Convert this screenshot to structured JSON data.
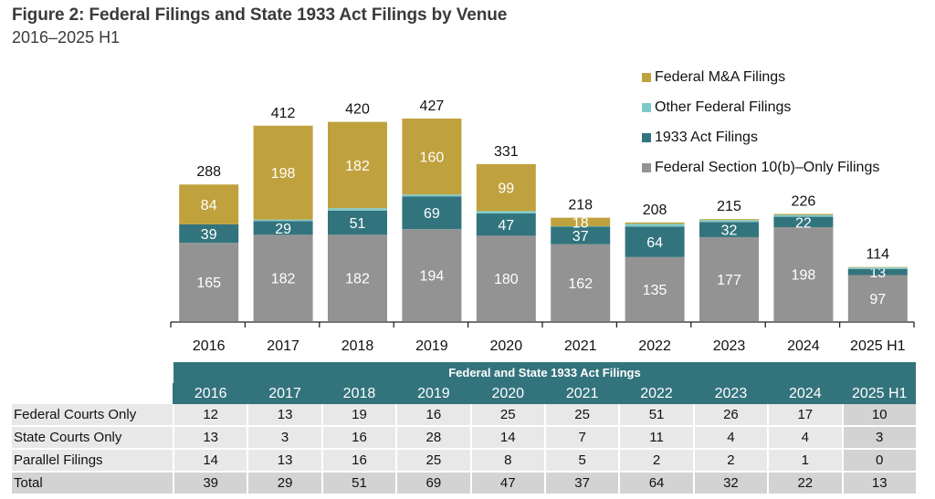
{
  "header": {
    "title": "Figure 2: Federal Filings and State 1933 Act Filings by Venue",
    "subtitle": "2016–2025 H1"
  },
  "chart_data": {
    "type": "bar",
    "stacked": true,
    "title": "Figure 2: Federal Filings and State 1933 Act Filings by Venue",
    "subtitle": "2016–2025 H1",
    "xlabel": "",
    "ylabel": "",
    "ylim": [
      0,
      430
    ],
    "grid": false,
    "legend_position": "top-right",
    "categories": [
      "2016",
      "2017",
      "2018",
      "2019",
      "2020",
      "2021",
      "2022",
      "2023",
      "2024",
      "2025 H1"
    ],
    "series": [
      {
        "name": "Federal Section 10(b)–Only Filings",
        "color": "#939393",
        "values": [
          165,
          182,
          182,
          194,
          180,
          162,
          135,
          177,
          198,
          97
        ],
        "labels": [
          "165",
          "182",
          "182",
          "194",
          "180",
          "162",
          "135",
          "177",
          "198",
          "97"
        ]
      },
      {
        "name": "1933 Act Filings",
        "color": "#32747d",
        "values": [
          39,
          29,
          51,
          69,
          47,
          37,
          64,
          32,
          22,
          13
        ],
        "labels": [
          "39",
          "29",
          "51",
          "69",
          "47",
          "37",
          "64",
          "32",
          "22",
          "13"
        ]
      },
      {
        "name": "Other Federal Filings",
        "color": "#7ecac8",
        "values": [
          0,
          3,
          5,
          4,
          5,
          1,
          6,
          4,
          4,
          3
        ],
        "labels": [
          "",
          "",
          "",
          "",
          "",
          "",
          "",
          "",
          "",
          ""
        ]
      },
      {
        "name": "Federal M&A Filings",
        "color": "#bfa13d",
        "values": [
          84,
          198,
          182,
          160,
          99,
          18,
          3,
          2,
          2,
          1
        ],
        "labels": [
          "84",
          "198",
          "182",
          "160",
          "99",
          "18",
          "",
          "",
          "",
          ""
        ]
      }
    ],
    "totals": [
      "288",
      "412",
      "420",
      "427",
      "331",
      "218",
      "208",
      "215",
      "226",
      "114"
    ]
  },
  "legend": [
    {
      "label": "Federal M&A Filings",
      "color": "#bfa13d"
    },
    {
      "label": "Other Federal Filings",
      "color": "#7ecac8"
    },
    {
      "label": "1933 Act Filings",
      "color": "#32747d"
    },
    {
      "label": "Federal Section 10(b)–Only Filings",
      "color": "#939393"
    }
  ],
  "table": {
    "title": "Federal and State 1933 Act Filings",
    "columns": [
      "2016",
      "2017",
      "2018",
      "2019",
      "2020",
      "2021",
      "2022",
      "2023",
      "2024",
      "2025 H1"
    ],
    "rows": [
      {
        "label": "Federal Courts Only",
        "values": [
          "12",
          "13",
          "19",
          "16",
          "25",
          "25",
          "51",
          "26",
          "17",
          "10"
        ]
      },
      {
        "label": "State Courts Only",
        "values": [
          "13",
          "3",
          "16",
          "28",
          "14",
          "7",
          "11",
          "4",
          "4",
          "3"
        ]
      },
      {
        "label": "Parallel Filings",
        "values": [
          "14",
          "13",
          "16",
          "25",
          "8",
          "5",
          "2",
          "2",
          "1",
          "0"
        ]
      },
      {
        "label": "Total",
        "values": [
          "39",
          "29",
          "51",
          "69",
          "47",
          "37",
          "64",
          "32",
          "22",
          "13"
        ]
      }
    ]
  }
}
